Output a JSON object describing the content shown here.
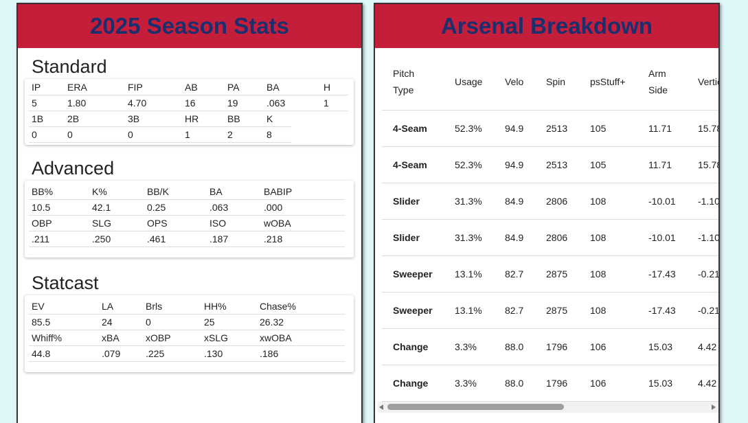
{
  "left": {
    "title": "2025 Season Stats",
    "sections": [
      {
        "title": "Standard",
        "rows": [
          [
            "IP",
            "ERA",
            "FIP",
            "AB",
            "PA",
            "BA",
            "H"
          ],
          [
            "5",
            "1.80",
            "4.70",
            "16",
            "19",
            ".063",
            "1"
          ],
          [
            "1B",
            "2B",
            "3B",
            "HR",
            "BB",
            "K"
          ],
          [
            "0",
            "0",
            "0",
            "1",
            "2",
            "8"
          ]
        ]
      },
      {
        "title": "Advanced",
        "rows": [
          [
            "BB%",
            "K%",
            "BB/K",
            "BA",
            "BABIP"
          ],
          [
            "10.5",
            "42.1",
            "0.25",
            ".063",
            ".000"
          ],
          [
            "OBP",
            "SLG",
            "OPS",
            "ISO",
            "wOBA"
          ],
          [
            ".211",
            ".250",
            ".461",
            ".187",
            ".218"
          ]
        ]
      },
      {
        "title": "Statcast",
        "rows": [
          [
            "EV",
            "LA",
            "Brls",
            "HH%",
            "Chase%"
          ],
          [
            "85.5",
            "24",
            "0",
            "25",
            "26.32"
          ],
          [
            "Whiff%",
            "xBA",
            "xOBP",
            "xSLG",
            "xwOBA"
          ],
          [
            "44.8",
            ".079",
            ".225",
            ".130",
            ".186"
          ]
        ]
      }
    ]
  },
  "right": {
    "title": "Arsenal Breakdown",
    "columns": [
      "Pitch Type",
      "Usage",
      "Velo",
      "Spin",
      "psStuff+",
      "Arm Side",
      "Vertical"
    ],
    "rows": [
      [
        "4-Seam",
        "52.3%",
        "94.9",
        "2513",
        "105",
        "11.71",
        "15.78"
      ],
      [
        "4-Seam",
        "52.3%",
        "94.9",
        "2513",
        "105",
        "11.71",
        "15.78"
      ],
      [
        "Slider",
        "31.3%",
        "84.9",
        "2806",
        "108",
        "-10.01",
        "-1.10"
      ],
      [
        "Slider",
        "31.3%",
        "84.9",
        "2806",
        "108",
        "-10.01",
        "-1.10"
      ],
      [
        "Sweeper",
        "13.1%",
        "82.7",
        "2875",
        "108",
        "-17.43",
        "-0.21"
      ],
      [
        "Sweeper",
        "13.1%",
        "82.7",
        "2875",
        "108",
        "-17.43",
        "-0.21"
      ],
      [
        "Change",
        "3.3%",
        "88.0",
        "1796",
        "106",
        "15.03",
        "4.42"
      ],
      [
        "Change",
        "3.3%",
        "88.0",
        "1796",
        "106",
        "15.03",
        "4.42"
      ]
    ]
  }
}
